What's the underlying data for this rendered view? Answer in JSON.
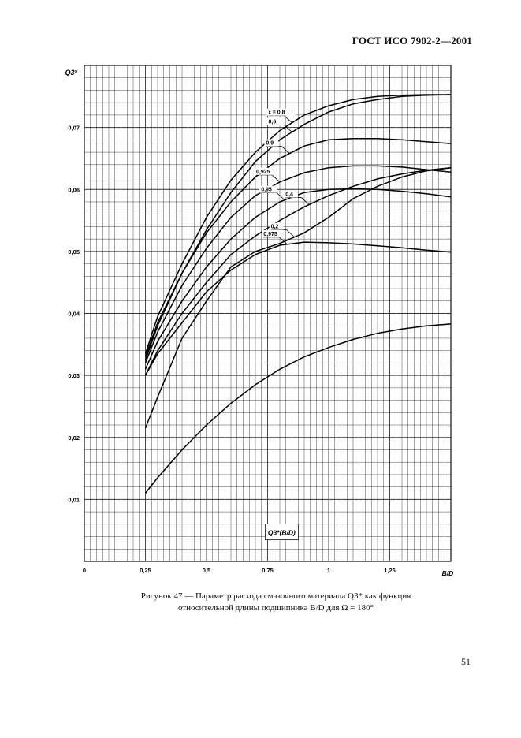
{
  "header": {
    "standard": "ГОСТ ИСО 7902-2—2001"
  },
  "page_number": "51",
  "caption": {
    "line1": "Рисунок 47 — Параметр расхода смазочного материала Q3* как функция",
    "line2": "относительной длины подшипника B/D для Ω = 180°"
  },
  "chart_data": {
    "type": "line",
    "title": "",
    "xlabel": "B/D",
    "ylabel": "Q3*",
    "inset_label": "Q3*(B/D)",
    "xlim": [
      0,
      1.5
    ],
    "ylim": [
      0,
      0.08
    ],
    "grid": true,
    "x_ticks": [
      {
        "value": 0,
        "label": "0"
      },
      {
        "value": 0.25,
        "label": "0,25"
      },
      {
        "value": 0.5,
        "label": "0,5"
      },
      {
        "value": 0.75,
        "label": "0,75"
      },
      {
        "value": 1,
        "label": "1"
      },
      {
        "value": 1.25,
        "label": "1,25"
      }
    ],
    "y_ticks": [
      {
        "value": 0.01,
        "label": "0,01"
      },
      {
        "value": 0.02,
        "label": "0,02"
      },
      {
        "value": 0.03,
        "label": "0,03"
      },
      {
        "value": 0.04,
        "label": "0,04"
      },
      {
        "value": 0.05,
        "label": "0,05"
      },
      {
        "value": 0.06,
        "label": "0,06"
      },
      {
        "value": 0.07,
        "label": "0,07"
      }
    ],
    "x": [
      0.25,
      0.3,
      0.4,
      0.5,
      0.6,
      0.7,
      0.8,
      0.9,
      1.0,
      1.1,
      1.2,
      1.3,
      1.4,
      1.5
    ],
    "series": [
      {
        "name": "ε = 0,8",
        "label_at_x": 0.85,
        "values": [
          0.0335,
          0.0395,
          0.048,
          0.0555,
          0.0615,
          0.066,
          0.0695,
          0.072,
          0.0735,
          0.0745,
          0.075,
          0.0752,
          0.0753,
          0.0753
        ]
      },
      {
        "name": "0,6",
        "label_at_x": 0.85,
        "values": [
          0.0325,
          0.038,
          0.0465,
          0.0535,
          0.0595,
          0.0645,
          0.068,
          0.0705,
          0.0725,
          0.0738,
          0.0745,
          0.075,
          0.0752,
          0.0753
        ]
      },
      {
        "name": "0,9",
        "label_at_x": 0.84,
        "values": [
          0.033,
          0.0385,
          0.0465,
          0.053,
          0.058,
          0.062,
          0.065,
          0.067,
          0.068,
          0.0682,
          0.0682,
          0.068,
          0.0677,
          0.0674
        ]
      },
      {
        "name": "0,925",
        "label_at_x": 0.8,
        "values": [
          0.032,
          0.037,
          0.0445,
          0.0505,
          0.0555,
          0.059,
          0.0612,
          0.0627,
          0.0635,
          0.0638,
          0.0638,
          0.0636,
          0.0632,
          0.0628
        ]
      },
      {
        "name": "0,95",
        "label_at_x": 0.82,
        "values": [
          0.031,
          0.0355,
          0.042,
          0.0475,
          0.052,
          0.0555,
          0.058,
          0.0595,
          0.06,
          0.0601,
          0.06,
          0.0597,
          0.0593,
          0.0588
        ]
      },
      {
        "name": "0,4",
        "label_at_x": 0.92,
        "values": [
          0.03,
          0.034,
          0.04,
          0.045,
          0.0495,
          0.0525,
          0.055,
          0.0572,
          0.059,
          0.0605,
          0.0617,
          0.0625,
          0.0631,
          0.0635
        ]
      },
      {
        "name": "0,975",
        "label_at_x": 0.83,
        "values": [
          0.03,
          0.0335,
          0.0385,
          0.0435,
          0.047,
          0.0495,
          0.051,
          0.0515,
          0.0514,
          0.0512,
          0.0509,
          0.0506,
          0.0502,
          0.0499
        ]
      },
      {
        "name": "0,2",
        "label_at_x": 0.86,
        "values": [
          0.0215,
          0.0265,
          0.036,
          0.042,
          0.0475,
          0.05,
          0.0513,
          0.053,
          0.0555,
          0.0585,
          0.0605,
          0.062,
          0.063,
          0.0635
        ]
      },
      {
        "name": "",
        "label_at_x": null,
        "values": [
          0.011,
          0.0135,
          0.018,
          0.022,
          0.0255,
          0.0285,
          0.031,
          0.033,
          0.0345,
          0.0358,
          0.0368,
          0.0375,
          0.038,
          0.0383
        ]
      }
    ]
  }
}
